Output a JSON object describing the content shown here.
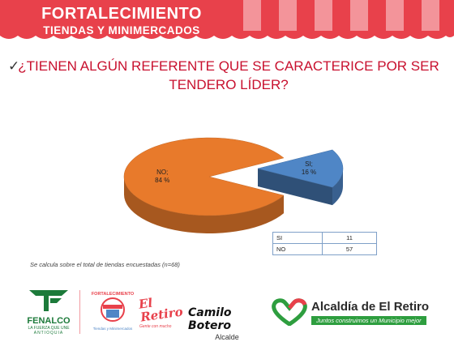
{
  "header": {
    "title_line1": "FORTALECIMIENTO",
    "title_line2": "TIENDAS Y MINIMERCADOS",
    "bg_color": "#e8414b"
  },
  "question": {
    "line1": "¿TIENEN ALGÚN REFERENTE QUE SE CARACTERICE POR SER",
    "line2": "TENDERO LÍDER?"
  },
  "chart_data": {
    "type": "pie",
    "categories": [
      "NO",
      "SI"
    ],
    "values": [
      84,
      16
    ],
    "labels": [
      "NO;\n84 %",
      "SI;\n16 %"
    ],
    "colors": [
      "#e87a2b",
      "#4f86c6"
    ],
    "3d": true,
    "table": {
      "rows": [
        {
          "label": "SI",
          "value": "11"
        },
        {
          "label": "NO",
          "value": "57"
        }
      ]
    }
  },
  "note": "Se calcula sobre el total de tiendas encuestadas (n=68)",
  "footer": {
    "fenalco_name": "FENALCO",
    "fenalco_tagline": "LA FUERZA QUE UNE",
    "fenalco_region": "ANTIOQUIA",
    "fort_text": "FORTALECIMIENTO",
    "fort_sub": "Tiendas y Minimercados",
    "retiro_word": "El Retiro",
    "retiro_sub": "Gente con mucho",
    "mayor_name": "Camilo Botero",
    "mayor_role": "Alcalde",
    "alcaldia_name": "Alcaldía de El Retiro",
    "alcaldia_slogan": "Juntos construimos un Municipio mejor"
  }
}
